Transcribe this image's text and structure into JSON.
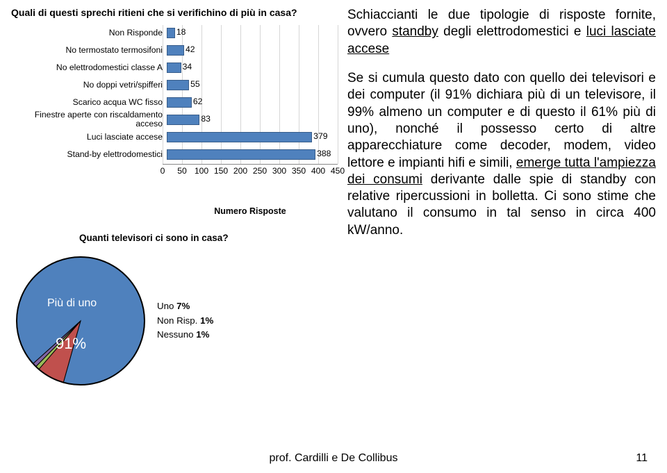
{
  "bar_chart": {
    "title": "Quali di questi sprechi ritieni che si verifichino di più in casa?",
    "axis_label": "Numero Risposte",
    "x_max": 450,
    "x_tick_step": 50,
    "ticks": [
      "0",
      "50",
      "100",
      "150",
      "200",
      "250",
      "300",
      "350",
      "400",
      "450"
    ],
    "bar_fill": "#4f81bd",
    "bar_border": "#385d8a",
    "grid_color": "#d6d6d6",
    "categories": [
      {
        "label": "Non Risponde",
        "value": 18
      },
      {
        "label": "No termostato termosifoni",
        "value": 42
      },
      {
        "label": "No elettrodomestici classe A",
        "value": 34
      },
      {
        "label": "No doppi vetri/spifferi",
        "value": 55
      },
      {
        "label": "Scarico acqua WC fisso",
        "value": 62
      },
      {
        "label": "Finestre aperte con riscaldamento acceso",
        "value": 83
      },
      {
        "label": "Luci lasciate accese",
        "value": 379
      },
      {
        "label": "Stand-by elettrodomestici",
        "value": 388
      }
    ]
  },
  "pie_chart": {
    "title": "Quanti televisori ci sono in casa?",
    "main_label": "Più di uno",
    "main_pct": "91%",
    "labels": [
      {
        "name": "Uno",
        "pct": "7%",
        "bold_pct": true
      },
      {
        "name": "Non Risp.",
        "pct": "1%",
        "bold_pct": true
      },
      {
        "name": "Nessuno",
        "pct": "1%",
        "bold_pct": true
      }
    ],
    "slices": [
      {
        "color": "#4f81bd",
        "pct": 91
      },
      {
        "color": "#c0504d",
        "pct": 7
      },
      {
        "color": "#9bbb59",
        "pct": 1
      },
      {
        "color": "#8064a2",
        "pct": 1
      }
    ],
    "outline": "#000"
  },
  "paragraph": {
    "t1a": "Schiaccianti le due tipologie di risposte fornite, ovvero ",
    "t1u1": "standby",
    "t1b": " degli elettrodomestici e ",
    "t1u2": "luci lasciate accese",
    "t2a": "Se si cumula questo dato con quello dei televisori e dei computer (il 91% dichiara più di un televisore, il 99% almeno un computer e di questo il 61% più di uno), nonché il possesso certo di altre apparecchiature come decoder, modem, video lettore e impianti hifi e simili, ",
    "t2u": "emerge tutta l'ampiezza dei consumi",
    "t2b": " derivante dalle spie di standby con relative ripercussioni in bolletta. Ci sono stime che valutano il consumo in tal senso in circa 400 kW/anno."
  },
  "footer": {
    "author": "prof. Cardilli e De Collibus",
    "page": "11"
  }
}
